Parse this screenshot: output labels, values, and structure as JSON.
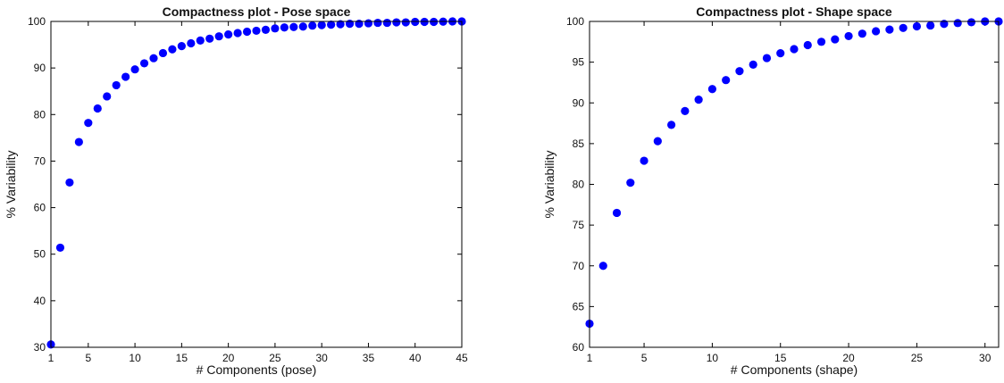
{
  "chart_data": [
    {
      "type": "scatter",
      "title": "Compactness plot - Pose space",
      "xlabel": "# Components (pose)",
      "ylabel": "% Variability",
      "xlim": [
        1,
        45
      ],
      "ylim": [
        30,
        100
      ],
      "xticks": [
        1,
        5,
        10,
        15,
        20,
        25,
        30,
        35,
        40,
        45
      ],
      "yticks": [
        30,
        40,
        50,
        60,
        70,
        80,
        90,
        100
      ],
      "grid": false,
      "marker_color": "#0000ff",
      "series": [
        {
          "x": [
            1,
            2,
            3,
            4,
            5,
            6,
            7,
            8,
            9,
            10,
            11,
            12,
            13,
            14,
            15,
            16,
            17,
            18,
            19,
            20,
            21,
            22,
            23,
            24,
            25,
            26,
            27,
            28,
            29,
            30,
            31,
            32,
            33,
            34,
            35,
            36,
            37,
            38,
            39,
            40,
            41,
            42,
            43,
            44,
            45
          ],
          "values": [
            30.6,
            51.4,
            65.4,
            74.1,
            78.2,
            81.3,
            83.9,
            86.3,
            88.1,
            89.7,
            91.0,
            92.1,
            93.2,
            94.0,
            94.7,
            95.3,
            95.9,
            96.3,
            96.8,
            97.2,
            97.5,
            97.8,
            98.0,
            98.2,
            98.5,
            98.7,
            98.8,
            98.9,
            99.1,
            99.2,
            99.3,
            99.4,
            99.5,
            99.5,
            99.6,
            99.7,
            99.7,
            99.8,
            99.8,
            99.9,
            99.9,
            99.9,
            99.95,
            100.0,
            100.0
          ]
        }
      ]
    },
    {
      "type": "scatter",
      "title": "Compactness plot - Shape space",
      "xlabel": "# Components (shape)",
      "ylabel": "% Variability",
      "xlim": [
        1,
        31
      ],
      "ylim": [
        60,
        100
      ],
      "xticks": [
        1,
        5,
        10,
        15,
        20,
        25,
        30
      ],
      "yticks": [
        60,
        65,
        70,
        75,
        80,
        85,
        90,
        95,
        100
      ],
      "grid": false,
      "marker_color": "#0000ff",
      "series": [
        {
          "x": [
            1,
            2,
            3,
            4,
            5,
            6,
            7,
            8,
            9,
            10,
            11,
            12,
            13,
            14,
            15,
            16,
            17,
            18,
            19,
            20,
            21,
            22,
            23,
            24,
            25,
            26,
            27,
            28,
            29,
            30,
            31
          ],
          "values": [
            62.9,
            70.0,
            76.5,
            80.2,
            82.9,
            85.3,
            87.3,
            89.0,
            90.4,
            91.7,
            92.8,
            93.9,
            94.7,
            95.5,
            96.1,
            96.6,
            97.1,
            97.5,
            97.8,
            98.2,
            98.5,
            98.8,
            99.0,
            99.2,
            99.4,
            99.5,
            99.7,
            99.8,
            99.9,
            100.0,
            100.0
          ]
        }
      ]
    }
  ]
}
